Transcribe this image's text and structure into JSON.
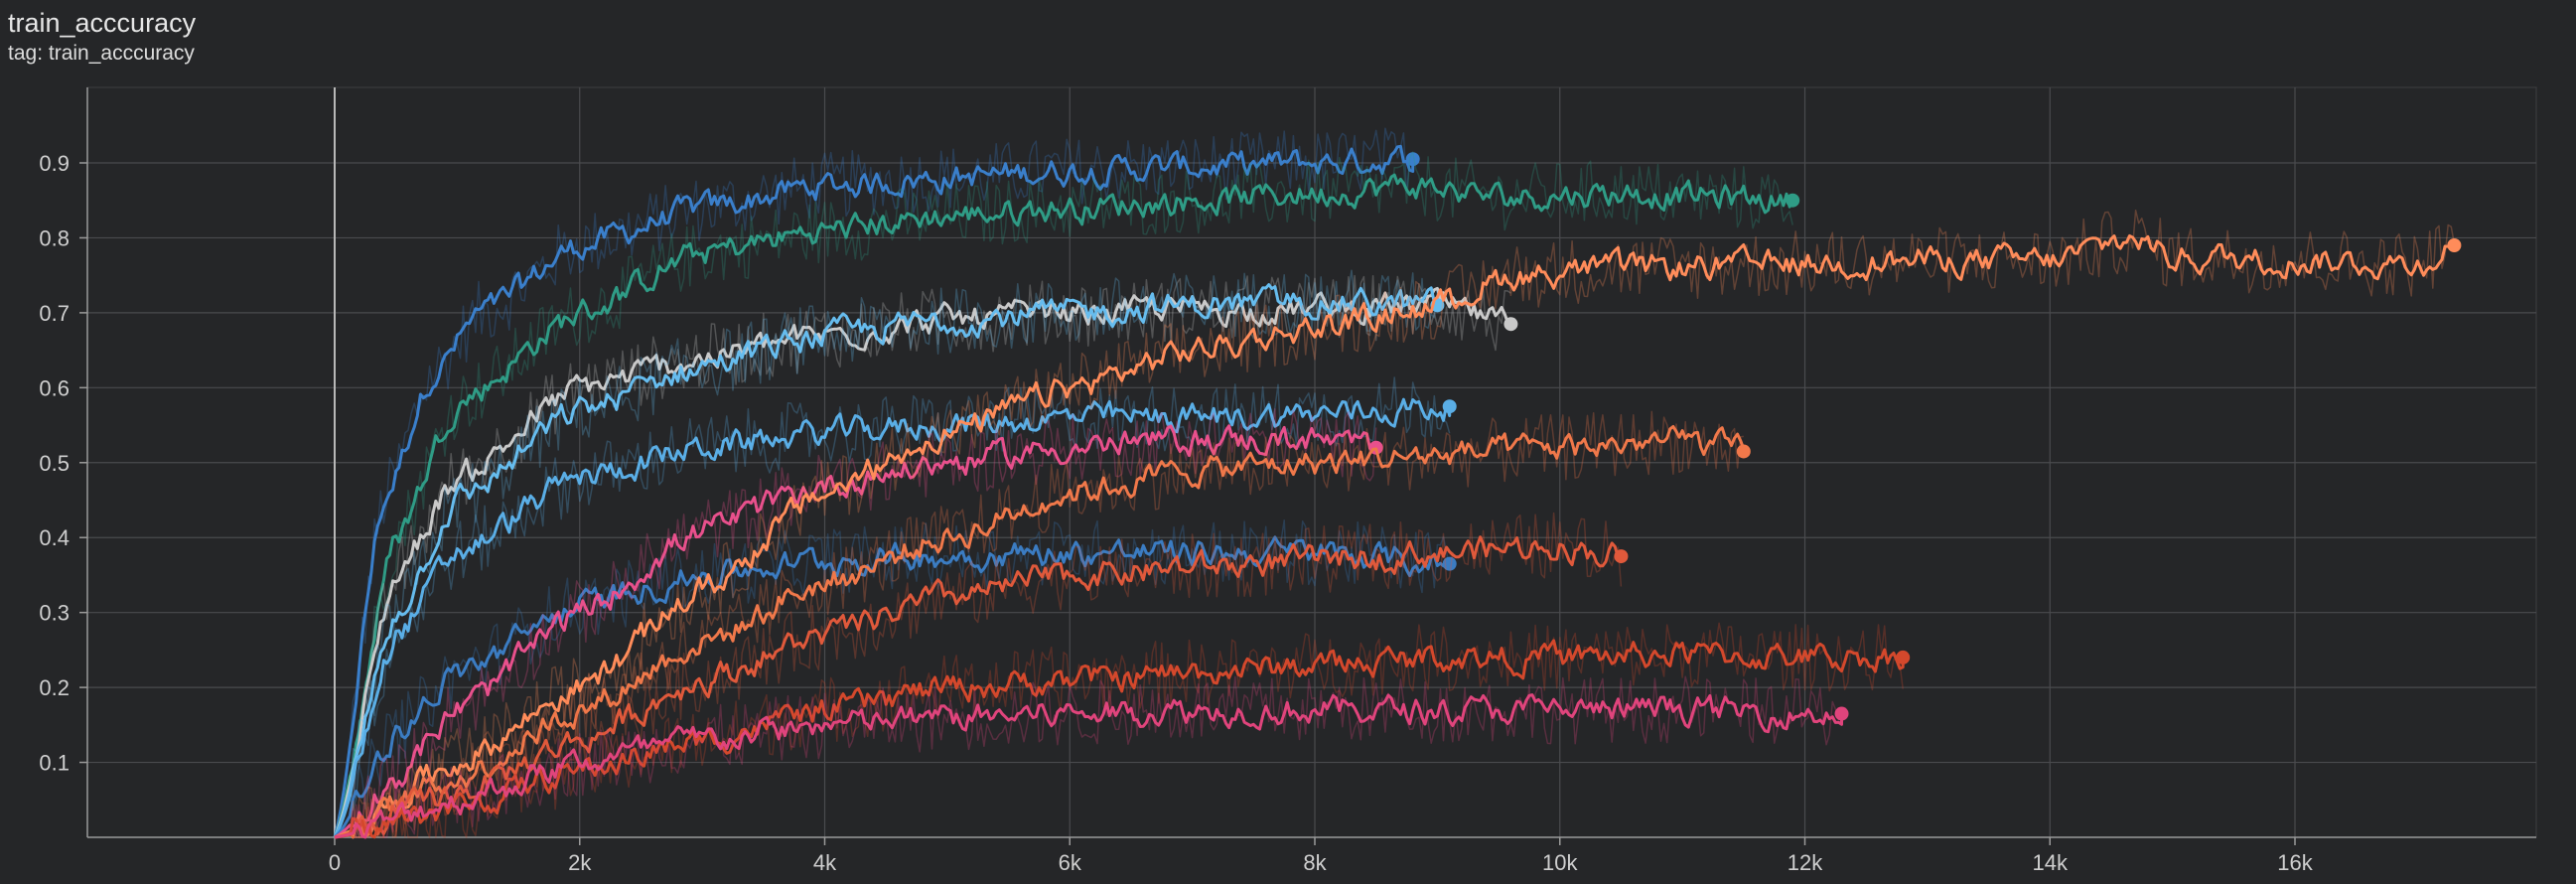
{
  "header": {
    "title": "train_acccuracy",
    "tag": "tag: train_acccuracy"
  },
  "chart_data": {
    "type": "line",
    "title": "train_acccuracy",
    "xlabel": "",
    "ylabel": "",
    "xlim": [
      -4000,
      18700
    ],
    "ylim": [
      0,
      1.0
    ],
    "x_ticks": [
      0,
      2000,
      4000,
      6000,
      8000,
      10000,
      12000,
      14000,
      16000
    ],
    "x_tick_labels": [
      "0",
      "2k",
      "4k",
      "6k",
      "8k",
      "10k",
      "12k",
      "14k",
      "16k"
    ],
    "y_ticks": [
      0.1,
      0.2,
      0.3,
      0.4,
      0.5,
      0.6,
      0.7,
      0.8,
      0.9
    ],
    "y_tick_labels": [
      "0.1",
      "0.2",
      "0.3",
      "0.4",
      "0.5",
      "0.6",
      "0.7",
      "0.8",
      "0.9"
    ],
    "grid": true,
    "legend": "none",
    "series": [
      {
        "color": "#3a7fcb",
        "x": [
          0,
          400,
          800,
          1200,
          2000,
          3000,
          4000,
          5000,
          6000,
          7000,
          8000,
          8800
        ],
        "y": [
          0,
          0.45,
          0.62,
          0.7,
          0.79,
          0.84,
          0.87,
          0.88,
          0.89,
          0.895,
          0.9,
          0.905
        ]
      },
      {
        "color": "#2f9c86",
        "x": [
          0,
          500,
          1000,
          2000,
          3000,
          4000,
          5000,
          6000,
          7000,
          8000,
          8800,
          9500,
          10500,
          11200,
          11900
        ],
        "y": [
          0,
          0.4,
          0.58,
          0.7,
          0.78,
          0.81,
          0.83,
          0.84,
          0.85,
          0.86,
          0.87,
          0.855,
          0.86,
          0.855,
          0.85
        ]
      },
      {
        "color": "#c9c9c9",
        "x": [
          0,
          500,
          1000,
          2000,
          3000,
          4000,
          5000,
          6000,
          7000,
          8000,
          9000,
          9600
        ],
        "y": [
          0,
          0.35,
          0.48,
          0.6,
          0.64,
          0.67,
          0.69,
          0.7,
          0.705,
          0.705,
          0.71,
          0.685
        ]
      },
      {
        "color": "#66bcee",
        "x": [
          0,
          500,
          1000,
          2000,
          3000,
          4000,
          5000,
          6000,
          7000,
          8000,
          9000
        ],
        "y": [
          0,
          0.3,
          0.45,
          0.57,
          0.63,
          0.67,
          0.69,
          0.7,
          0.71,
          0.715,
          0.71
        ]
      },
      {
        "color": "#5aaee6",
        "x": [
          0,
          500,
          1000,
          2000,
          3000,
          4000,
          5000,
          6000,
          7000,
          8000,
          9100
        ],
        "y": [
          0,
          0.27,
          0.38,
          0.48,
          0.52,
          0.54,
          0.55,
          0.56,
          0.56,
          0.565,
          0.575
        ]
      },
      {
        "color": "#3b7cc2",
        "x": [
          0,
          500,
          1000,
          2000,
          3000,
          4000,
          5000,
          6000,
          7000,
          8000,
          9100
        ],
        "y": [
          0,
          0.14,
          0.22,
          0.31,
          0.35,
          0.37,
          0.375,
          0.38,
          0.38,
          0.38,
          0.365
        ]
      },
      {
        "color": "#e8508c",
        "x": [
          0,
          500,
          1000,
          2000,
          3000,
          4000,
          5000,
          6000,
          7000,
          8000,
          8500
        ],
        "y": [
          0,
          0.08,
          0.17,
          0.3,
          0.41,
          0.47,
          0.5,
          0.52,
          0.53,
          0.53,
          0.52
        ]
      },
      {
        "color": "#ff8c5a",
        "x": [
          0,
          1000,
          2000,
          3000,
          4000,
          5000,
          6000,
          7000,
          8000,
          9000,
          9600,
          10500,
          12000,
          13000,
          14000,
          14700,
          15000,
          16000,
          17000,
          17300
        ],
        "y": [
          0,
          0.1,
          0.2,
          0.33,
          0.46,
          0.54,
          0.6,
          0.65,
          0.68,
          0.71,
          0.75,
          0.76,
          0.765,
          0.77,
          0.77,
          0.8,
          0.775,
          0.77,
          0.765,
          0.79
        ]
      },
      {
        "color": "#f0784a",
        "x": [
          0,
          1000,
          2000,
          3000,
          4000,
          5000,
          6000,
          7000,
          8000,
          9000,
          10000,
          11000,
          11500
        ],
        "y": [
          0,
          0.08,
          0.17,
          0.26,
          0.34,
          0.4,
          0.46,
          0.49,
          0.5,
          0.51,
          0.52,
          0.53,
          0.515
        ]
      },
      {
        "color": "#e0593b",
        "x": [
          0,
          1000,
          2000,
          3000,
          4000,
          5000,
          6000,
          7000,
          8000,
          9000,
          10000,
          10500
        ],
        "y": [
          0,
          0.06,
          0.13,
          0.21,
          0.27,
          0.32,
          0.35,
          0.36,
          0.37,
          0.38,
          0.39,
          0.375
        ]
      },
      {
        "color": "#d4482c",
        "x": [
          0,
          1000,
          2000,
          3000,
          4000,
          5000,
          6000,
          7000,
          8000,
          9000,
          10000,
          11000,
          12000,
          12800
        ],
        "y": [
          0,
          0.04,
          0.09,
          0.13,
          0.17,
          0.2,
          0.21,
          0.22,
          0.23,
          0.24,
          0.24,
          0.245,
          0.24,
          0.24
        ]
      },
      {
        "color": "#e0447c",
        "x": [
          0,
          1000,
          2000,
          3000,
          4000,
          5000,
          6000,
          7000,
          8000,
          9000,
          10000,
          11000,
          12300
        ],
        "y": [
          0,
          0.05,
          0.1,
          0.13,
          0.15,
          0.16,
          0.165,
          0.17,
          0.17,
          0.17,
          0.17,
          0.17,
          0.165
        ]
      }
    ]
  }
}
